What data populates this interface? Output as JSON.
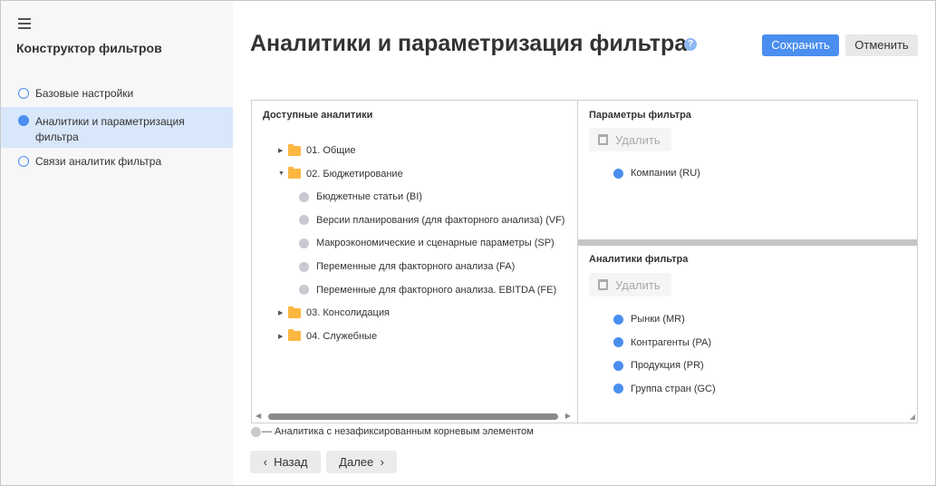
{
  "sidebar": {
    "title": "Конструктор фильтров",
    "steps": [
      {
        "label": "Базовые настройки",
        "active": false
      },
      {
        "label": "Аналитики и параметризация фильтра",
        "active": true
      },
      {
        "label": "Связи аналитик фильтра",
        "active": false
      }
    ]
  },
  "header": {
    "title": "Аналитики и параметризация фильтра",
    "help": "?",
    "save_label": "Сохранить",
    "cancel_label": "Отменить"
  },
  "available": {
    "title": "Доступные аналитики",
    "tree": [
      {
        "label": "01. Общие",
        "type": "folder",
        "expanded": false
      },
      {
        "label": "02. Бюджетирование",
        "type": "folder",
        "expanded": true
      },
      {
        "label": "Бюджетные статьи (BI)",
        "type": "item"
      },
      {
        "label": "Версии планирования (для факторного анализа) (VF)",
        "type": "item"
      },
      {
        "label": "Макроэкономические и сценарные параметры (SP)",
        "type": "item"
      },
      {
        "label": "Переменные для факторного анализа (FA)",
        "type": "item"
      },
      {
        "label": "Переменные для факторного анализа. EBITDA (FE)",
        "type": "item"
      },
      {
        "label": "03. Консолидация",
        "type": "folder",
        "expanded": false
      },
      {
        "label": "04. Служебные",
        "type": "folder",
        "expanded": false
      }
    ]
  },
  "params": {
    "title": "Параметры фильтра",
    "delete_label": "Удалить",
    "items": [
      "Компании (RU)"
    ]
  },
  "filter_analytics": {
    "title": "Аналитики фильтра",
    "delete_label": "Удалить",
    "items": [
      "Рынки (MR)",
      "Контрагенты (PA)",
      "Продукция (PR)",
      "Группа стран (GC)"
    ]
  },
  "legend": "— Аналитика с незафиксированным корневым элементом",
  "nav": {
    "back_label": "Назад",
    "next_label": "Далее"
  },
  "colors": {
    "accent": "#4a8ef0",
    "folder": "#fbb740",
    "active_bg": "#d9e7fb"
  }
}
